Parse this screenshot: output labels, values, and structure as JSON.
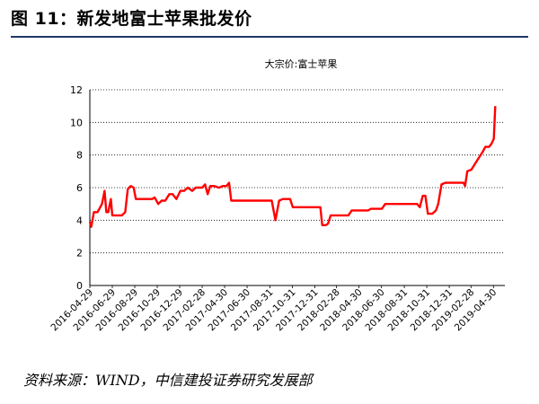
{
  "figure": {
    "title": "图 11：新发地富士苹果批发价",
    "source": "资料来源：WIND，中信建投证券研究发展部"
  },
  "colors": {
    "series": "#ff0000",
    "title_rule": "#1f3864",
    "grid": "#000000"
  },
  "chart_data": {
    "type": "line",
    "title": "大宗价:富士苹果",
    "xlabel": "",
    "ylabel": "",
    "ylim": [
      0,
      12
    ],
    "yticks": [
      0,
      2,
      4,
      6,
      8,
      10,
      12
    ],
    "grid": true,
    "gridlines": "horizontal-dotted",
    "legend": "none",
    "xlim": [
      "2016-04-29",
      "2019-05-31"
    ],
    "xtick_labels": [
      "2016-04-29",
      "2016-06-29",
      "2016-08-29",
      "2016-10-29",
      "2016-12-29",
      "2017-02-28",
      "2017-04-30",
      "2017-06-30",
      "2017-08-31",
      "2017-10-31",
      "2017-12-31",
      "2018-02-28",
      "2018-04-30",
      "2018-06-30",
      "2018-08-31",
      "2018-10-31",
      "2018-12-31",
      "2019-02-28",
      "2019-04-30"
    ],
    "series": [
      {
        "color": "#ff0000",
        "points": [
          [
            "2016-04-29",
            3.9
          ],
          [
            "2016-05-03",
            3.6
          ],
          [
            "2016-05-10",
            4.5
          ],
          [
            "2016-05-20",
            4.5
          ],
          [
            "2016-06-01",
            5.0
          ],
          [
            "2016-06-08",
            5.8
          ],
          [
            "2016-06-13",
            4.5
          ],
          [
            "2016-06-18",
            4.5
          ],
          [
            "2016-06-25",
            5.3
          ],
          [
            "2016-06-29",
            4.3
          ],
          [
            "2016-07-10",
            4.3
          ],
          [
            "2016-07-25",
            4.3
          ],
          [
            "2016-08-03",
            4.5
          ],
          [
            "2016-08-10",
            5.9
          ],
          [
            "2016-08-18",
            6.1
          ],
          [
            "2016-08-26",
            6.0
          ],
          [
            "2016-09-01",
            5.3
          ],
          [
            "2016-09-15",
            5.3
          ],
          [
            "2016-10-01",
            5.3
          ],
          [
            "2016-10-15",
            5.3
          ],
          [
            "2016-10-22",
            5.4
          ],
          [
            "2016-11-01",
            5.0
          ],
          [
            "2016-11-10",
            5.2
          ],
          [
            "2016-11-20",
            5.2
          ],
          [
            "2016-12-01",
            5.6
          ],
          [
            "2016-12-10",
            5.6
          ],
          [
            "2016-12-20",
            5.3
          ],
          [
            "2016-12-31",
            5.8
          ],
          [
            "2017-01-10",
            5.8
          ],
          [
            "2017-01-20",
            6.0
          ],
          [
            "2017-02-01",
            5.8
          ],
          [
            "2017-02-10",
            6.0
          ],
          [
            "2017-02-28",
            6.0
          ],
          [
            "2017-03-08",
            6.2
          ],
          [
            "2017-03-15",
            5.6
          ],
          [
            "2017-03-22",
            6.1
          ],
          [
            "2017-04-01",
            6.1
          ],
          [
            "2017-04-15",
            6.0
          ],
          [
            "2017-04-25",
            6.1
          ],
          [
            "2017-05-05",
            6.1
          ],
          [
            "2017-05-12",
            6.3
          ],
          [
            "2017-05-18",
            5.2
          ],
          [
            "2017-06-15",
            5.2
          ],
          [
            "2017-07-15",
            5.2
          ],
          [
            "2017-08-15",
            5.2
          ],
          [
            "2017-09-05",
            5.2
          ],
          [
            "2017-09-15",
            4.0
          ],
          [
            "2017-09-25",
            5.2
          ],
          [
            "2017-10-05",
            5.3
          ],
          [
            "2017-10-25",
            5.3
          ],
          [
            "2017-11-01",
            4.8
          ],
          [
            "2017-11-20",
            4.8
          ],
          [
            "2017-12-10",
            4.8
          ],
          [
            "2018-01-01",
            4.8
          ],
          [
            "2018-01-15",
            4.8
          ],
          [
            "2018-01-20",
            3.7
          ],
          [
            "2018-01-30",
            3.7
          ],
          [
            "2018-02-05",
            3.8
          ],
          [
            "2018-02-12",
            4.3
          ],
          [
            "2018-03-10",
            4.3
          ],
          [
            "2018-04-01",
            4.3
          ],
          [
            "2018-04-10",
            4.6
          ],
          [
            "2018-05-10",
            4.6
          ],
          [
            "2018-05-25",
            4.6
          ],
          [
            "2018-06-01",
            4.7
          ],
          [
            "2018-07-01",
            4.7
          ],
          [
            "2018-07-10",
            5.0
          ],
          [
            "2018-08-15",
            5.0
          ],
          [
            "2018-09-15",
            5.0
          ],
          [
            "2018-10-05",
            5.0
          ],
          [
            "2018-10-12",
            4.8
          ],
          [
            "2018-10-20",
            5.5
          ],
          [
            "2018-10-27",
            5.5
          ],
          [
            "2018-11-03",
            4.4
          ],
          [
            "2018-11-15",
            4.4
          ],
          [
            "2018-11-25",
            4.6
          ],
          [
            "2018-12-01",
            5.0
          ],
          [
            "2018-12-10",
            6.2
          ],
          [
            "2018-12-20",
            6.3
          ],
          [
            "2019-01-10",
            6.3
          ],
          [
            "2019-02-01",
            6.3
          ],
          [
            "2019-02-08",
            6.3
          ],
          [
            "2019-02-12",
            6.1
          ],
          [
            "2019-02-18",
            7.0
          ],
          [
            "2019-03-01",
            7.1
          ],
          [
            "2019-03-15",
            7.6
          ],
          [
            "2019-04-01",
            8.2
          ],
          [
            "2019-04-08",
            8.5
          ],
          [
            "2019-04-18",
            8.5
          ],
          [
            "2019-04-25",
            8.7
          ],
          [
            "2019-05-01",
            9.0
          ],
          [
            "2019-05-05",
            11.0
          ]
        ]
      }
    ]
  }
}
